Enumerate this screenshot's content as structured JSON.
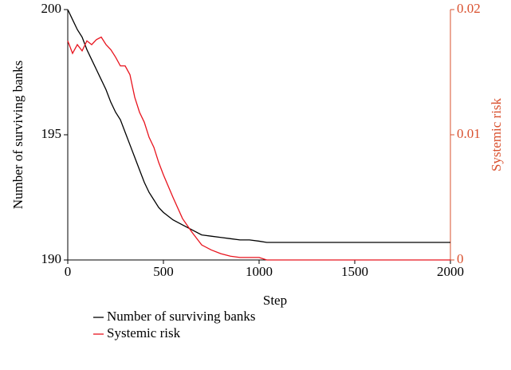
{
  "chart_data": {
    "type": "line",
    "x_label": "Step",
    "y_label": "Number of surviving banks",
    "y2_label": "Systemic risk",
    "x": [
      0,
      25,
      50,
      75,
      100,
      125,
      150,
      175,
      200,
      225,
      250,
      275,
      300,
      325,
      350,
      375,
      400,
      425,
      450,
      475,
      500,
      550,
      600,
      650,
      700,
      750,
      800,
      850,
      900,
      950,
      1000,
      1040,
      1100,
      1500,
      2000
    ],
    "series": [
      {
        "name": "Number of surviving banks",
        "color": "#000000",
        "values": [
          200,
          199.6,
          199.2,
          198.9,
          198.4,
          198,
          197.6,
          197.2,
          196.8,
          196.3,
          195.9,
          195.6,
          195.1,
          194.6,
          194.1,
          193.6,
          193.1,
          192.7,
          192.4,
          192.1,
          191.9,
          191.6,
          191.4,
          191.2,
          191,
          190.95,
          190.9,
          190.85,
          190.8,
          190.8,
          190.75,
          190.7,
          190.7,
          190.7,
          190.7
        ]
      },
      {
        "name": "Systemic risk",
        "color": "#e8141e",
        "axis": "y2",
        "values": [
          0.0175,
          0.0165,
          0.0172,
          0.0167,
          0.0175,
          0.0172,
          0.0176,
          0.0178,
          0.0172,
          0.0168,
          0.0162,
          0.0155,
          0.0155,
          0.0148,
          0.013,
          0.0118,
          0.011,
          0.0098,
          0.009,
          0.0078,
          0.0068,
          0.005,
          0.0033,
          0.0022,
          0.0012,
          0.0008,
          0.0005,
          0.0003,
          0.0002,
          0.0002,
          0.0002,
          0,
          0,
          0,
          0
        ]
      }
    ],
    "xlim": [
      0,
      2000
    ],
    "xticks": [
      0,
      500,
      1000,
      1500,
      2000
    ],
    "ylim": [
      190,
      200
    ],
    "yticks": [
      190,
      195,
      200
    ],
    "y2lim": [
      0,
      0.02
    ],
    "y2ticks": [
      0,
      0.01,
      0.02
    ],
    "y2_color": "#d9502e",
    "legend": "bottom"
  }
}
